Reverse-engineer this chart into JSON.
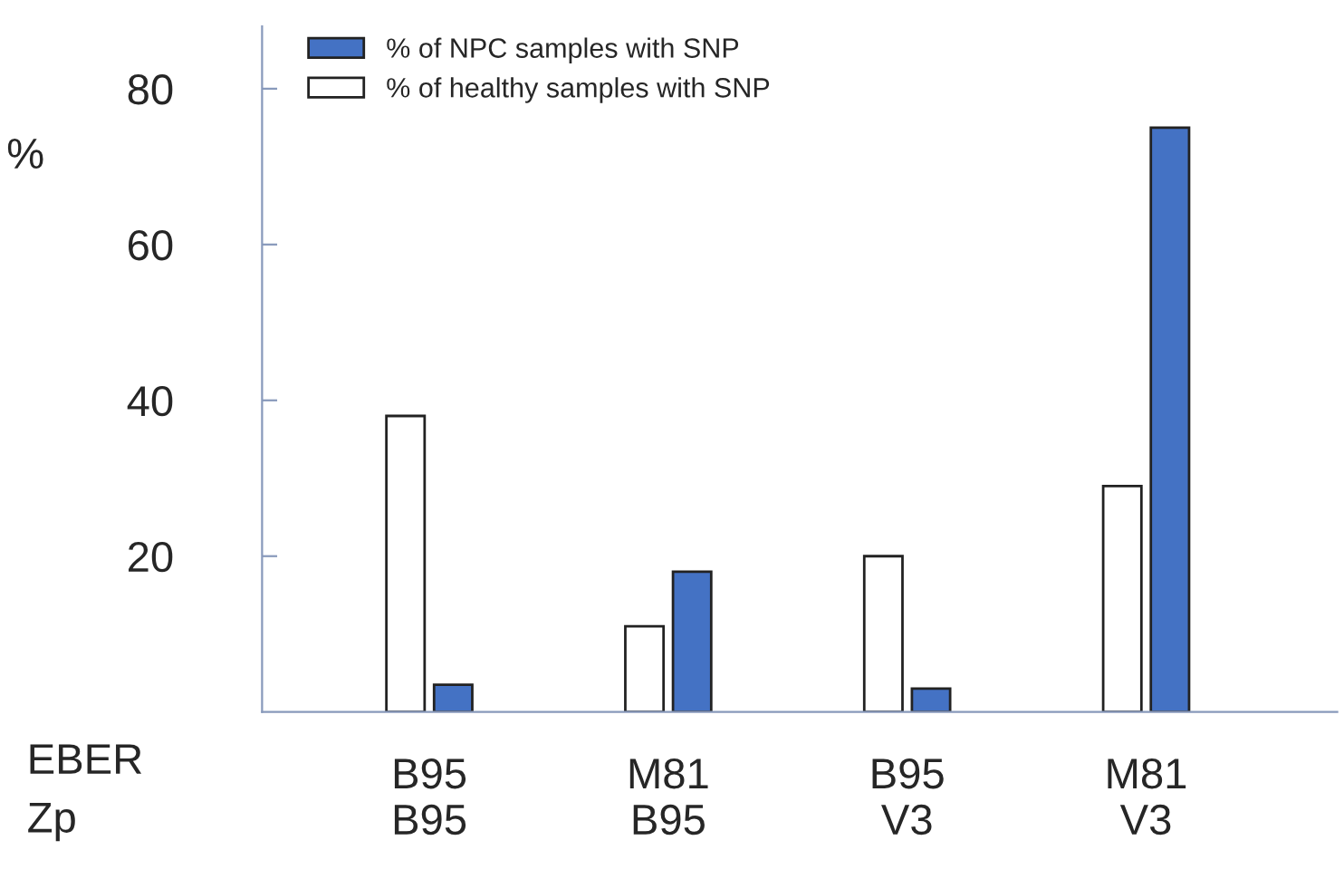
{
  "chart_data": {
    "type": "bar",
    "ylabel": "%",
    "categories": [
      "B95\nB95",
      "M81\nB95",
      "B95\nV3",
      "M81\nV3"
    ],
    "series": [
      {
        "name": "% of healthy samples with SNP",
        "color": "#ffffff",
        "values": [
          38,
          11,
          20,
          29
        ]
      },
      {
        "name": "% of NPC samples with SNP",
        "color": "#4472c4",
        "values": [
          3.5,
          18,
          3,
          75
        ]
      }
    ],
    "annotations": [
      "EBER\nZp"
    ],
    "ylim": [
      0,
      88
    ],
    "yticks": [
      20,
      40,
      60,
      80
    ],
    "grid": false,
    "legend": "top left"
  }
}
